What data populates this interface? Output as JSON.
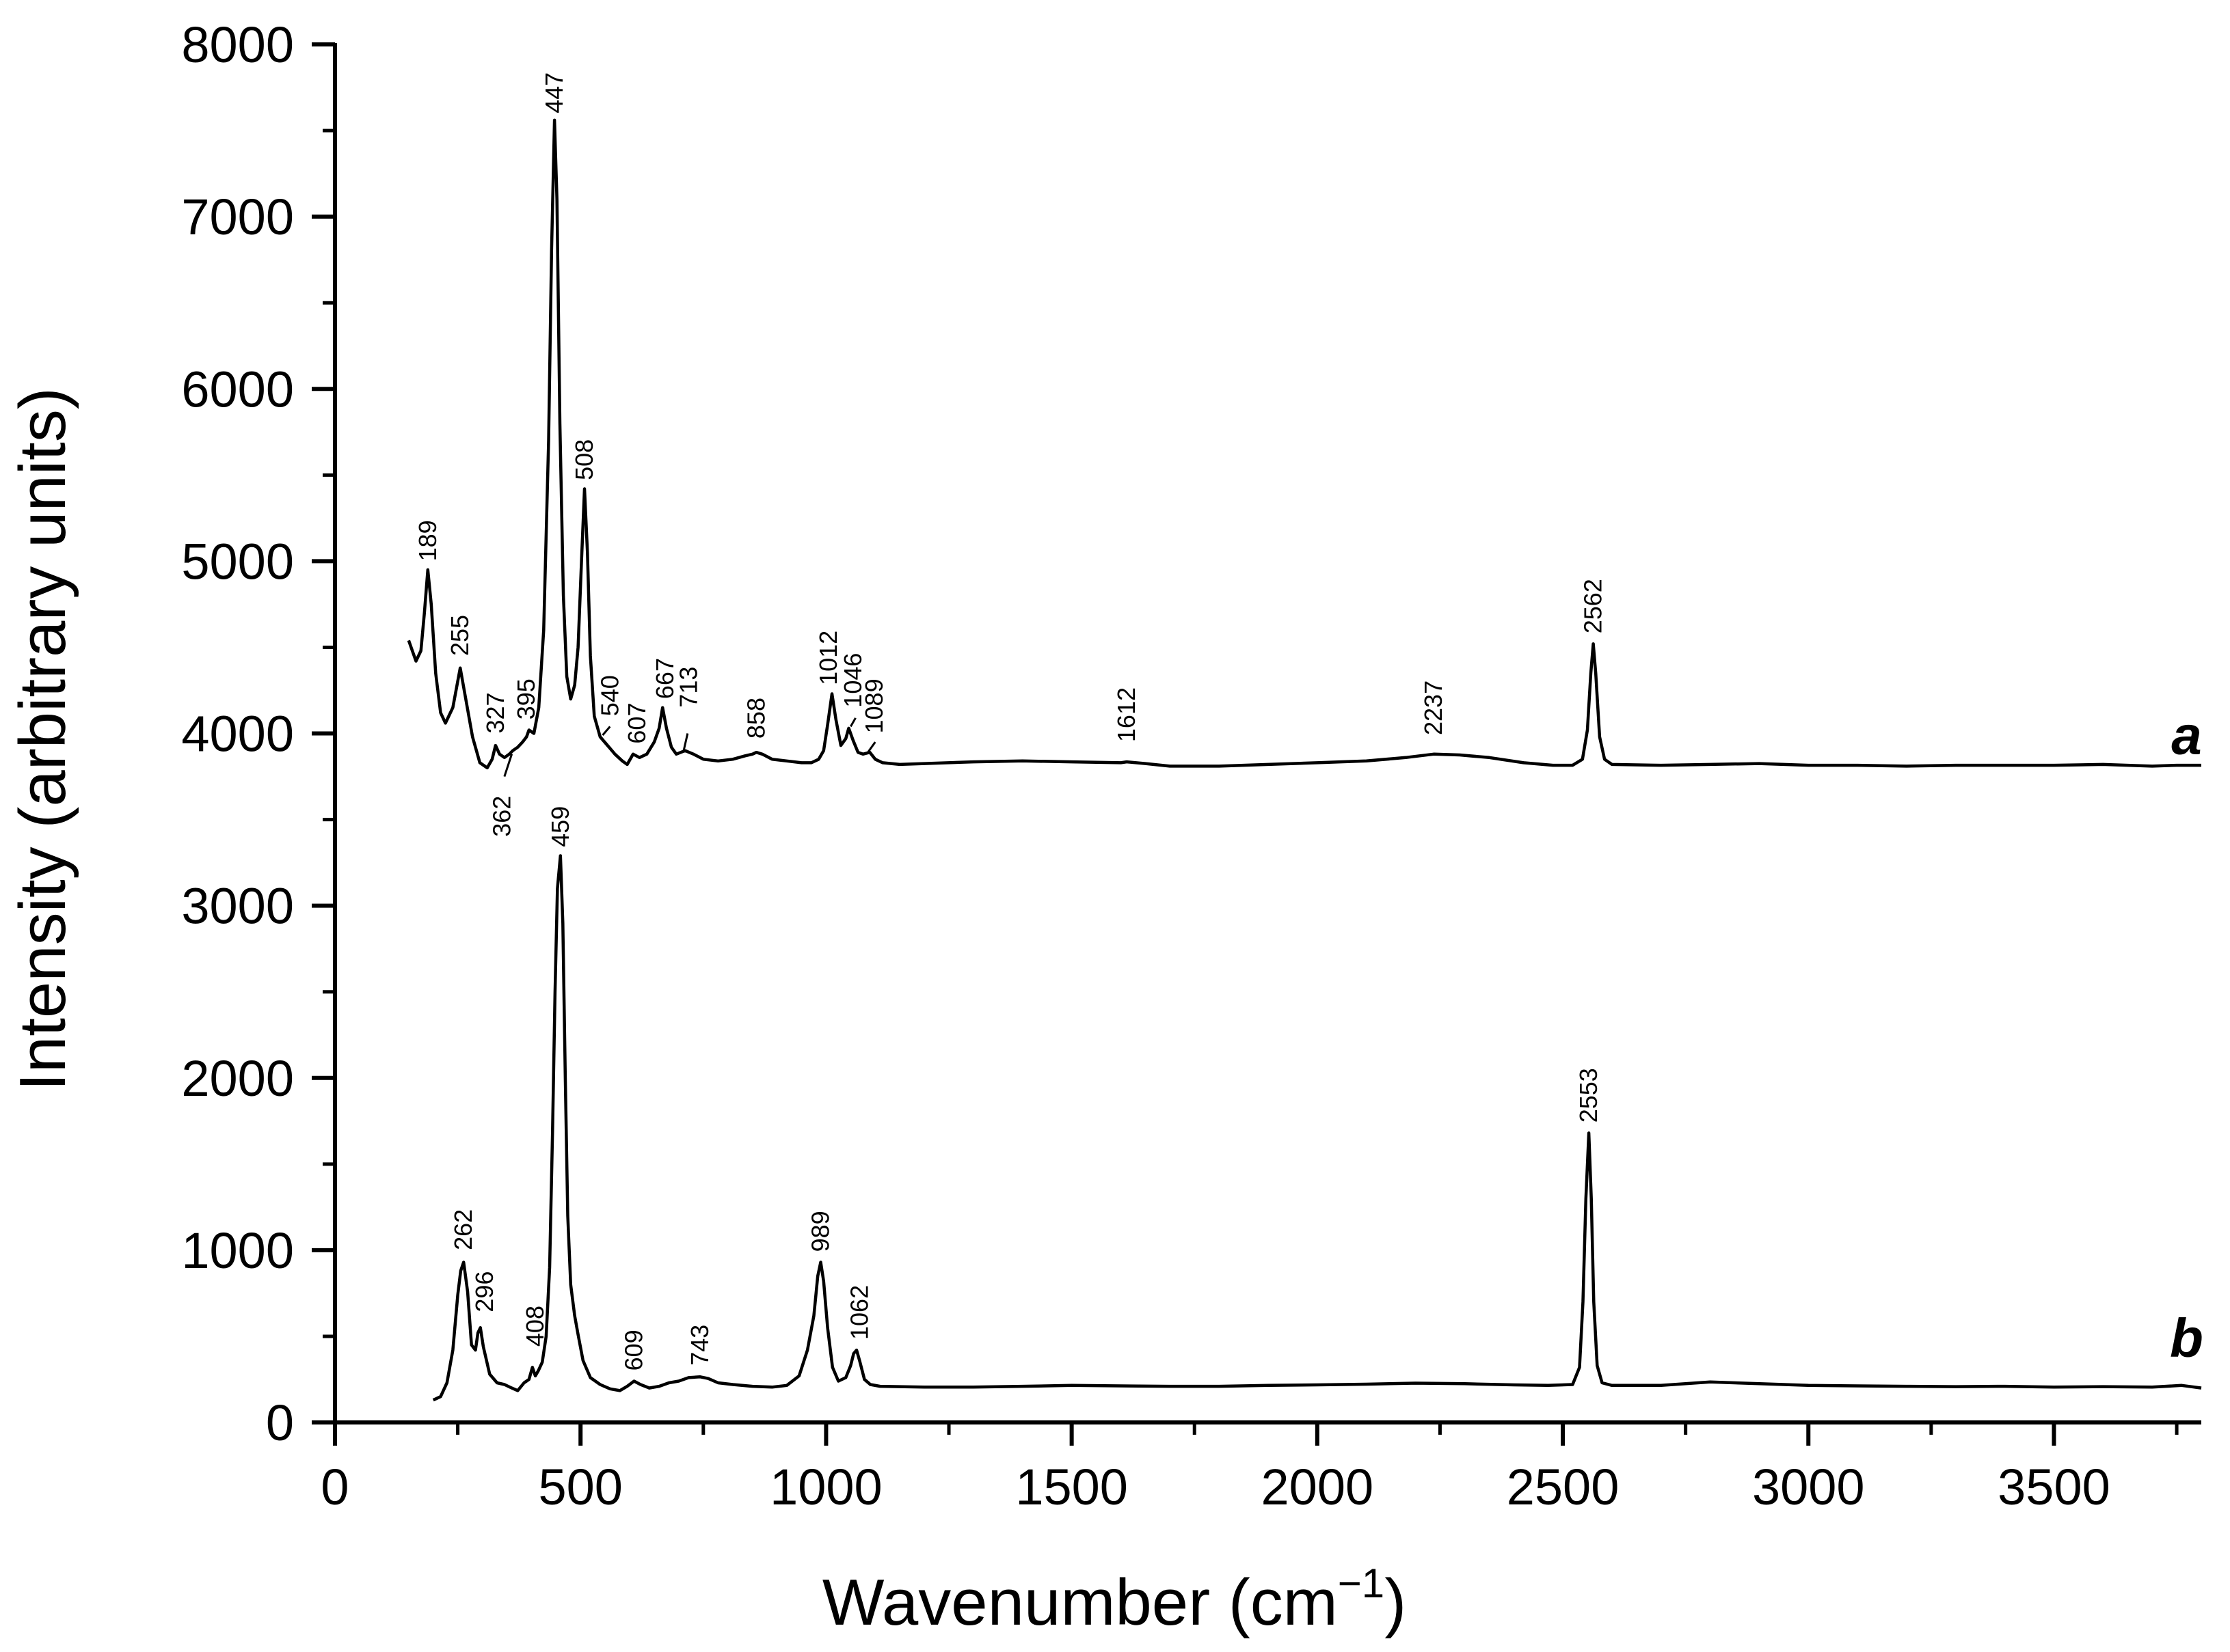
{
  "chart_data": {
    "type": "line",
    "title": "",
    "xlabel_main": "Wavenumber (cm",
    "xlabel_sup": "−1",
    "xlabel_close": ")",
    "ylabel": "Intensity (arbitrary units)",
    "xlim": [
      0,
      3800
    ],
    "ylim": [
      0,
      8000
    ],
    "x_ticks": [
      0,
      500,
      1000,
      1500,
      2000,
      2500,
      3000,
      3500
    ],
    "x_tick_labels": [
      "0",
      "500",
      "1000",
      "1500",
      "2000",
      "2500",
      "3000",
      "3500"
    ],
    "y_ticks": [
      0,
      1000,
      2000,
      3000,
      4000,
      5000,
      6000,
      7000,
      8000
    ],
    "y_tick_labels": [
      "0",
      "1000",
      "2000",
      "3000",
      "4000",
      "5000",
      "6000",
      "7000",
      "8000"
    ],
    "grid": false,
    "series": [
      {
        "name": "a",
        "baseline": 3820,
        "points": [
          [
            150,
            4540
          ],
          [
            165,
            4420
          ],
          [
            175,
            4480
          ],
          [
            182,
            4700
          ],
          [
            189,
            4950
          ],
          [
            196,
            4750
          ],
          [
            205,
            4350
          ],
          [
            215,
            4120
          ],
          [
            225,
            4060
          ],
          [
            240,
            4150
          ],
          [
            255,
            4380
          ],
          [
            265,
            4220
          ],
          [
            280,
            3980
          ],
          [
            295,
            3830
          ],
          [
            310,
            3800
          ],
          [
            320,
            3850
          ],
          [
            327,
            3930
          ],
          [
            335,
            3880
          ],
          [
            345,
            3860
          ],
          [
            355,
            3880
          ],
          [
            362,
            3900
          ],
          [
            372,
            3920
          ],
          [
            382,
            3950
          ],
          [
            390,
            3980
          ],
          [
            395,
            4020
          ],
          [
            405,
            4000
          ],
          [
            415,
            4150
          ],
          [
            425,
            4600
          ],
          [
            435,
            5700
          ],
          [
            441,
            6800
          ],
          [
            447,
            7560
          ],
          [
            452,
            7100
          ],
          [
            458,
            5800
          ],
          [
            465,
            4800
          ],
          [
            472,
            4330
          ],
          [
            480,
            4200
          ],
          [
            488,
            4280
          ],
          [
            495,
            4500
          ],
          [
            502,
            5000
          ],
          [
            508,
            5420
          ],
          [
            514,
            5050
          ],
          [
            520,
            4450
          ],
          [
            528,
            4100
          ],
          [
            540,
            3980
          ],
          [
            555,
            3930
          ],
          [
            570,
            3880
          ],
          [
            585,
            3840
          ],
          [
            595,
            3820
          ],
          [
            607,
            3880
          ],
          [
            620,
            3860
          ],
          [
            635,
            3880
          ],
          [
            650,
            3950
          ],
          [
            660,
            4030
          ],
          [
            667,
            4150
          ],
          [
            675,
            4030
          ],
          [
            685,
            3920
          ],
          [
            695,
            3880
          ],
          [
            713,
            3900
          ],
          [
            730,
            3880
          ],
          [
            750,
            3850
          ],
          [
            780,
            3840
          ],
          [
            810,
            3850
          ],
          [
            835,
            3870
          ],
          [
            850,
            3880
          ],
          [
            858,
            3890
          ],
          [
            870,
            3880
          ],
          [
            890,
            3850
          ],
          [
            920,
            3840
          ],
          [
            950,
            3830
          ],
          [
            970,
            3830
          ],
          [
            985,
            3850
          ],
          [
            995,
            3900
          ],
          [
            1003,
            4050
          ],
          [
            1012,
            4230
          ],
          [
            1020,
            4080
          ],
          [
            1030,
            3930
          ],
          [
            1040,
            3970
          ],
          [
            1046,
            4030
          ],
          [
            1055,
            3960
          ],
          [
            1065,
            3890
          ],
          [
            1075,
            3880
          ],
          [
            1089,
            3890
          ],
          [
            1100,
            3850
          ],
          [
            1115,
            3830
          ],
          [
            1150,
            3820
          ],
          [
            1200,
            3825
          ],
          [
            1300,
            3835
          ],
          [
            1400,
            3840
          ],
          [
            1500,
            3835
          ],
          [
            1600,
            3830
          ],
          [
            1612,
            3835
          ],
          [
            1650,
            3825
          ],
          [
            1700,
            3810
          ],
          [
            1800,
            3810
          ],
          [
            1900,
            3820
          ],
          [
            2000,
            3830
          ],
          [
            2100,
            3840
          ],
          [
            2180,
            3860
          ],
          [
            2237,
            3880
          ],
          [
            2290,
            3875
          ],
          [
            2350,
            3860
          ],
          [
            2420,
            3830
          ],
          [
            2480,
            3815
          ],
          [
            2520,
            3815
          ],
          [
            2540,
            3850
          ],
          [
            2550,
            4020
          ],
          [
            2557,
            4350
          ],
          [
            2562,
            4520
          ],
          [
            2567,
            4350
          ],
          [
            2575,
            3980
          ],
          [
            2585,
            3850
          ],
          [
            2600,
            3820
          ],
          [
            2700,
            3815
          ],
          [
            2800,
            3820
          ],
          [
            2900,
            3825
          ],
          [
            3000,
            3815
          ],
          [
            3100,
            3815
          ],
          [
            3200,
            3810
          ],
          [
            3300,
            3815
          ],
          [
            3400,
            3815
          ],
          [
            3500,
            3815
          ],
          [
            3600,
            3820
          ],
          [
            3700,
            3810
          ],
          [
            3750,
            3815
          ],
          [
            3800,
            3815
          ]
        ],
        "peaks": [
          189,
          255,
          327,
          362,
          395,
          447,
          508,
          540,
          607,
          667,
          713,
          858,
          1012,
          1046,
          1089,
          1612,
          2237,
          2562
        ]
      },
      {
        "name": "b",
        "baseline": 210,
        "points": [
          [
            200,
            130
          ],
          [
            215,
            150
          ],
          [
            228,
            230
          ],
          [
            240,
            420
          ],
          [
            250,
            740
          ],
          [
            256,
            880
          ],
          [
            262,
            930
          ],
          [
            270,
            760
          ],
          [
            278,
            450
          ],
          [
            286,
            420
          ],
          [
            291,
            520
          ],
          [
            296,
            550
          ],
          [
            302,
            440
          ],
          [
            315,
            280
          ],
          [
            330,
            230
          ],
          [
            345,
            220
          ],
          [
            360,
            200
          ],
          [
            372,
            185
          ],
          [
            385,
            230
          ],
          [
            395,
            250
          ],
          [
            402,
            320
          ],
          [
            408,
            270
          ],
          [
            414,
            300
          ],
          [
            422,
            350
          ],
          [
            430,
            500
          ],
          [
            437,
            900
          ],
          [
            443,
            1700
          ],
          [
            448,
            2500
          ],
          [
            453,
            3100
          ],
          [
            459,
            3290
          ],
          [
            464,
            2900
          ],
          [
            469,
            2000
          ],
          [
            474,
            1200
          ],
          [
            480,
            800
          ],
          [
            488,
            620
          ],
          [
            495,
            510
          ],
          [
            505,
            360
          ],
          [
            520,
            260
          ],
          [
            540,
            220
          ],
          [
            560,
            195
          ],
          [
            580,
            185
          ],
          [
            595,
            210
          ],
          [
            609,
            240
          ],
          [
            622,
            220
          ],
          [
            640,
            200
          ],
          [
            660,
            210
          ],
          [
            680,
            230
          ],
          [
            700,
            240
          ],
          [
            720,
            260
          ],
          [
            743,
            265
          ],
          [
            760,
            255
          ],
          [
            780,
            230
          ],
          [
            810,
            220
          ],
          [
            850,
            210
          ],
          [
            890,
            205
          ],
          [
            920,
            215
          ],
          [
            945,
            270
          ],
          [
            962,
            420
          ],
          [
            975,
            620
          ],
          [
            983,
            850
          ],
          [
            989,
            930
          ],
          [
            995,
            820
          ],
          [
            1003,
            550
          ],
          [
            1013,
            320
          ],
          [
            1025,
            240
          ],
          [
            1040,
            260
          ],
          [
            1050,
            330
          ],
          [
            1056,
            400
          ],
          [
            1062,
            420
          ],
          [
            1068,
            360
          ],
          [
            1078,
            250
          ],
          [
            1090,
            220
          ],
          [
            1110,
            210
          ],
          [
            1200,
            205
          ],
          [
            1300,
            205
          ],
          [
            1400,
            210
          ],
          [
            1500,
            215
          ],
          [
            1600,
            212
          ],
          [
            1700,
            210
          ],
          [
            1800,
            210
          ],
          [
            1900,
            215
          ],
          [
            2000,
            218
          ],
          [
            2100,
            222
          ],
          [
            2200,
            228
          ],
          [
            2300,
            225
          ],
          [
            2400,
            218
          ],
          [
            2470,
            215
          ],
          [
            2520,
            220
          ],
          [
            2534,
            320
          ],
          [
            2541,
            700
          ],
          [
            2547,
            1300
          ],
          [
            2553,
            1680
          ],
          [
            2558,
            1300
          ],
          [
            2563,
            700
          ],
          [
            2570,
            330
          ],
          [
            2580,
            230
          ],
          [
            2600,
            215
          ],
          [
            2700,
            215
          ],
          [
            2800,
            235
          ],
          [
            2900,
            225
          ],
          [
            3000,
            215
          ],
          [
            3100,
            212
          ],
          [
            3200,
            210
          ],
          [
            3300,
            208
          ],
          [
            3400,
            210
          ],
          [
            3500,
            205
          ],
          [
            3600,
            208
          ],
          [
            3700,
            205
          ],
          [
            3760,
            215
          ],
          [
            3800,
            200
          ]
        ],
        "peaks": [
          262,
          296,
          408,
          459,
          609,
          743,
          989,
          1062,
          2553
        ]
      }
    ],
    "peak_labels": [
      {
        "series": "a",
        "text": "189",
        "x": 189,
        "y": 5000
      },
      {
        "series": "a",
        "text": "255",
        "x": 255,
        "y": 4450
      },
      {
        "series": "a",
        "text": "327",
        "x": 327,
        "y": 4000
      },
      {
        "series": "a",
        "text": "362",
        "x": 340,
        "y": 3400
      },
      {
        "series": "a",
        "text": "395",
        "x": 390,
        "y": 4080
      },
      {
        "series": "a",
        "text": "447",
        "x": 447,
        "y": 7600
      },
      {
        "series": "a",
        "text": "508",
        "x": 508,
        "y": 5470
      },
      {
        "series": "a",
        "text": "540",
        "x": 560,
        "y": 4100
      },
      {
        "series": "a",
        "text": "607",
        "x": 615,
        "y": 3940
      },
      {
        "series": "a",
        "text": "667",
        "x": 672,
        "y": 4200
      },
      {
        "series": "a",
        "text": "713",
        "x": 720,
        "y": 4150
      },
      {
        "series": "a",
        "text": "858",
        "x": 858,
        "y": 3970
      },
      {
        "series": "a",
        "text": "1012",
        "x": 1005,
        "y": 4280
      },
      {
        "series": "a",
        "text": "1046",
        "x": 1055,
        "y": 4150
      },
      {
        "series": "a",
        "text": "1089",
        "x": 1098,
        "y": 4000
      },
      {
        "series": "a",
        "text": "1612",
        "x": 1612,
        "y": 3950
      },
      {
        "series": "a",
        "text": "2237",
        "x": 2237,
        "y": 3990
      },
      {
        "series": "a",
        "text": "2562",
        "x": 2562,
        "y": 4580
      },
      {
        "series": "b",
        "text": "262",
        "x": 262,
        "y": 1000
      },
      {
        "series": "b",
        "text": "296",
        "x": 305,
        "y": 640
      },
      {
        "series": "b",
        "text": "408",
        "x": 408,
        "y": 440
      },
      {
        "series": "b",
        "text": "459",
        "x": 459,
        "y": 3340
      },
      {
        "series": "b",
        "text": "609",
        "x": 609,
        "y": 300
      },
      {
        "series": "b",
        "text": "743",
        "x": 743,
        "y": 330
      },
      {
        "series": "b",
        "text": "989",
        "x": 989,
        "y": 990
      },
      {
        "series": "b",
        "text": "1062",
        "x": 1068,
        "y": 480
      },
      {
        "series": "b",
        "text": "2553",
        "x": 2553,
        "y": 1740
      }
    ],
    "leader_lines": [
      {
        "text": "362",
        "from": [
          345,
          3750
        ],
        "to": [
          360,
          3880
        ]
      },
      {
        "text": "540",
        "from": [
          545,
          3990
        ],
        "to": [
          560,
          4040
        ]
      },
      {
        "text": "713",
        "from": [
          710,
          3900
        ],
        "to": [
          718,
          4000
        ]
      },
      {
        "text": "1046",
        "from": [
          1050,
          4040
        ],
        "to": [
          1060,
          4090
        ]
      },
      {
        "text": "1089",
        "from": [
          1085,
          3890
        ],
        "to": [
          1100,
          3950
        ]
      }
    ],
    "series_labels": [
      {
        "text": "a",
        "x": 3770,
        "y": 4000
      },
      {
        "text": "b",
        "x": 3770,
        "y": 500
      }
    ]
  }
}
